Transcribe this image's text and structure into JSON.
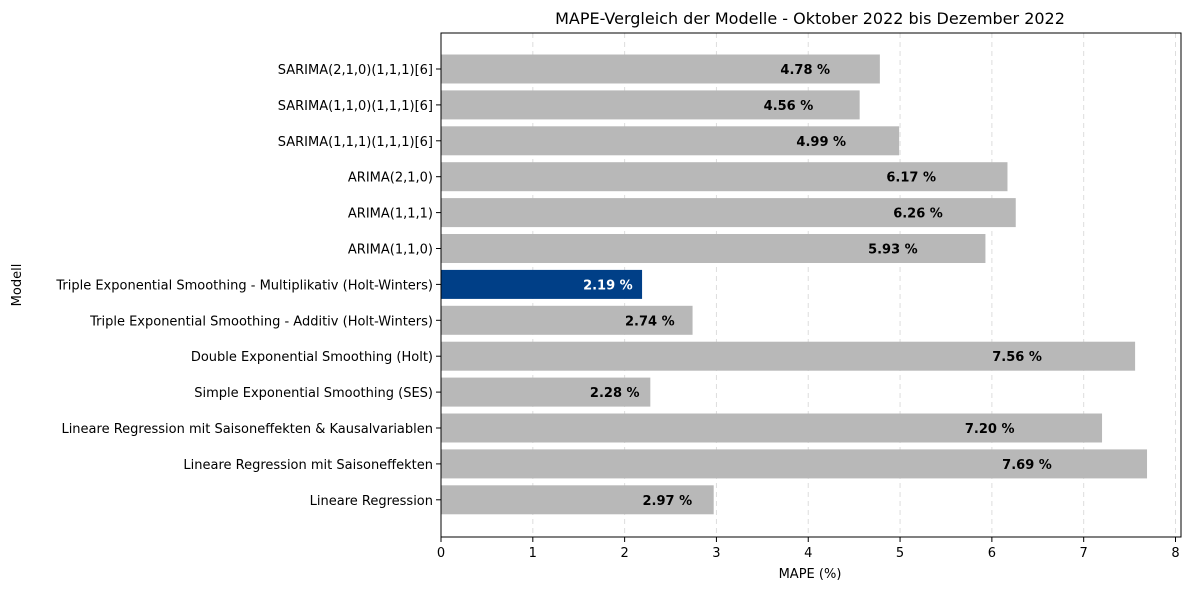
{
  "chart_data": {
    "type": "bar",
    "orientation": "horizontal",
    "title": "MAPE-Vergleich der Modelle - Oktober 2022 bis Dezember 2022",
    "xlabel": "MAPE (%)",
    "ylabel": "Modell",
    "xlim": [
      0,
      8.06
    ],
    "xticks": [
      0,
      1,
      2,
      3,
      4,
      5,
      6,
      7,
      8
    ],
    "grid": "x, dashed",
    "categories": [
      "SARIMA(2,1,0)(1,1,1)[6]",
      "SARIMA(1,1,0)(1,1,1)[6]",
      "SARIMA(1,1,1)(1,1,1)[6]",
      "ARIMA(2,1,0)",
      "ARIMA(1,1,1)",
      "ARIMA(1,1,0)",
      "Triple Exponential Smoothing - Multiplikativ (Holt-Winters)",
      "Triple Exponential Smoothing - Additiv (Holt-Winters)",
      "Double Exponential Smoothing (Holt)",
      "Simple Exponential Smoothing (SES)",
      "Lineare Regression mit Saisoneffekten & Kausalvariablen",
      "Lineare Regression mit Saisoneffekten",
      "Lineare Regression"
    ],
    "values": [
      4.78,
      4.56,
      4.99,
      6.17,
      6.26,
      5.93,
      2.19,
      2.74,
      7.56,
      2.28,
      7.2,
      7.69,
      2.97
    ],
    "value_labels": [
      "4.78 %",
      "4.56 %",
      "4.99 %",
      "6.17 %",
      "6.26 %",
      "5.93 %",
      "2.19 %",
      "2.74 %",
      "7.56 %",
      "2.28 %",
      "7.20 %",
      "7.69 %",
      "2.97 %"
    ],
    "highlight_index": 6,
    "colors": {
      "default_bar": "#b8b8b8",
      "highlight_bar": "#003f87",
      "default_label": "#000000",
      "highlight_label": "#ffffff",
      "grid": "#dddddd"
    }
  }
}
